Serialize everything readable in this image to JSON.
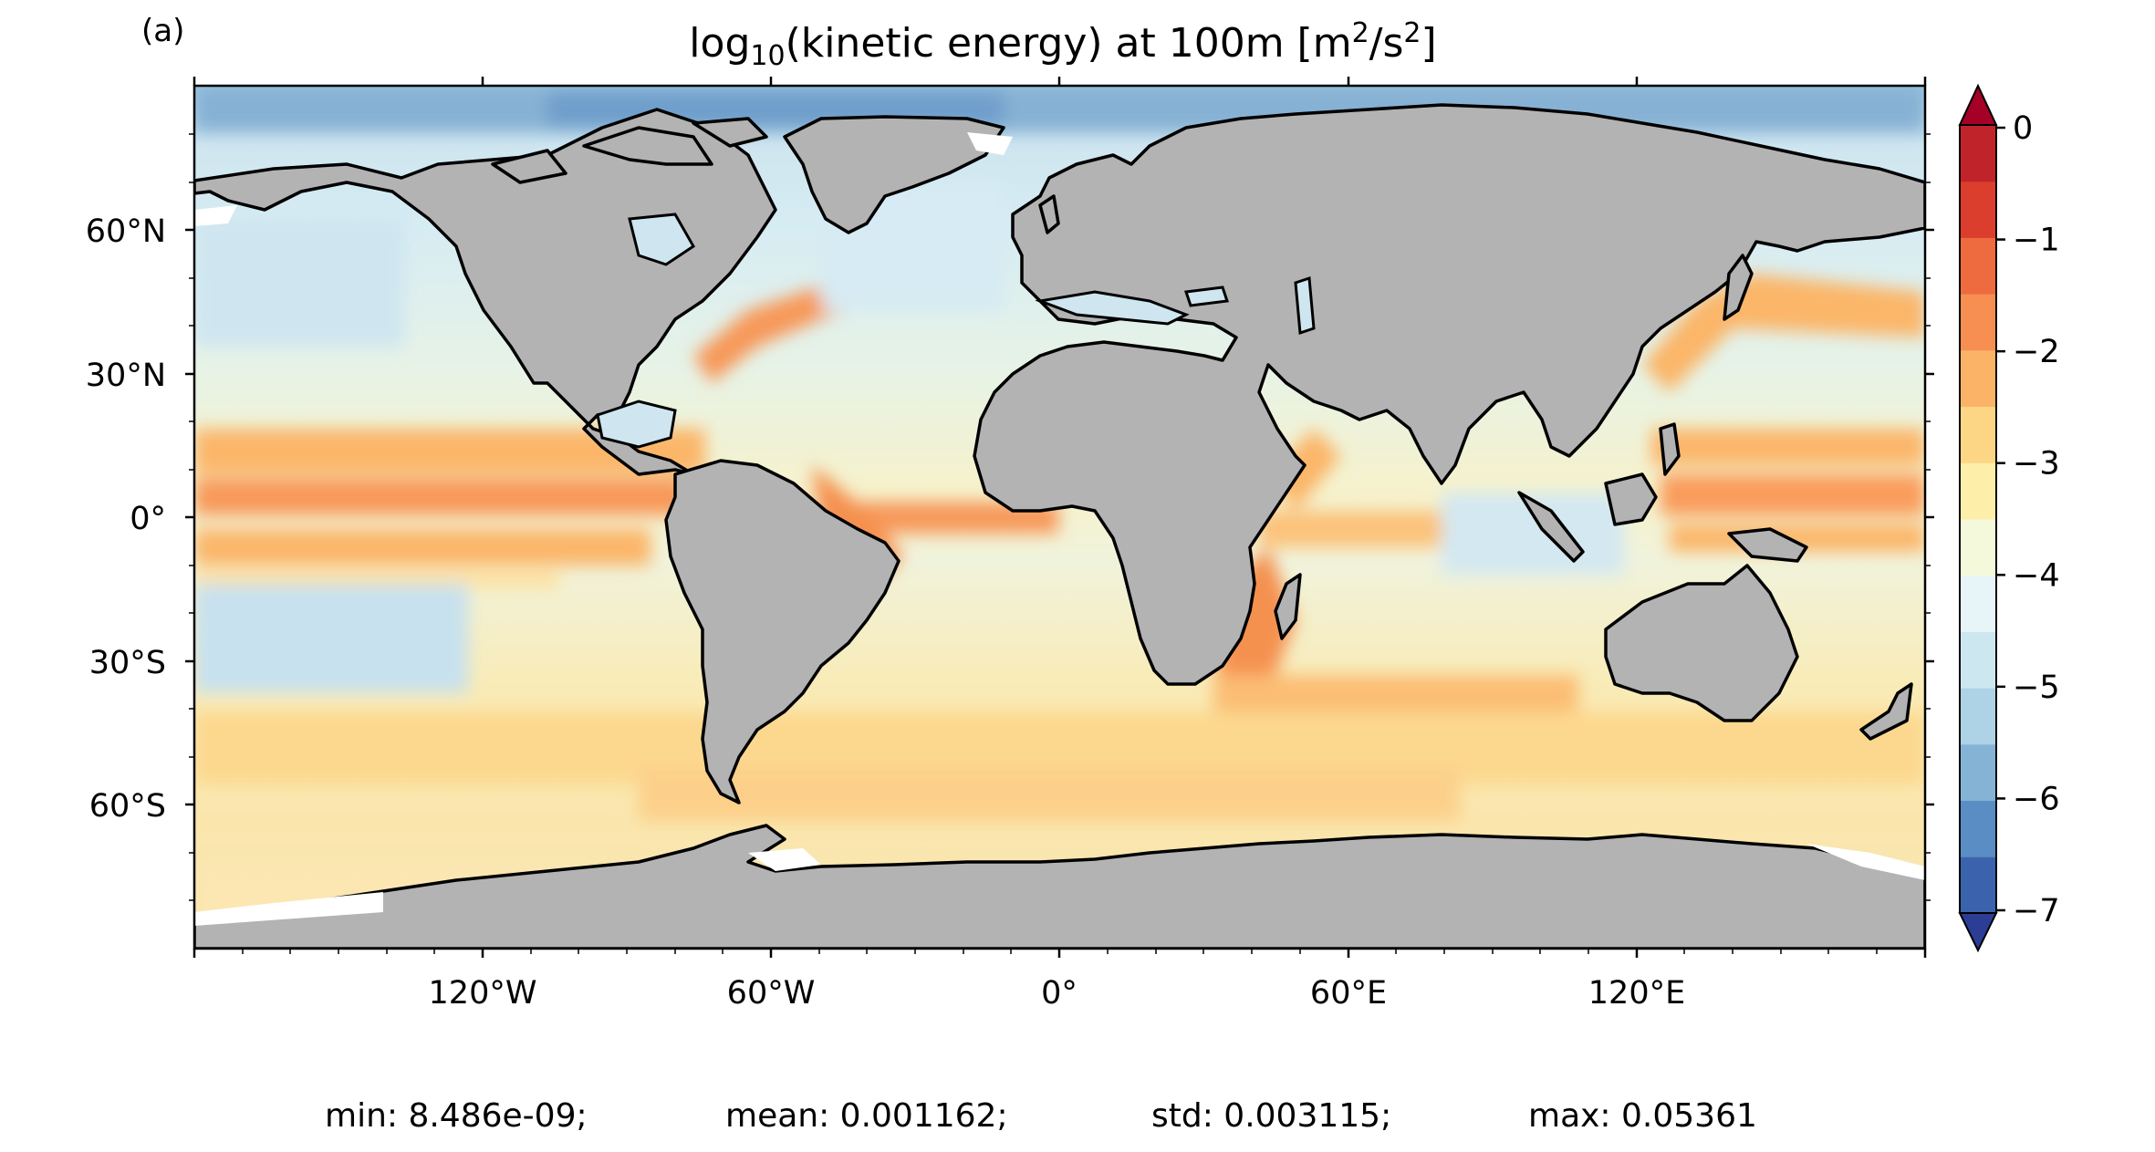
{
  "panel_label": "(a)",
  "title": {
    "prefix": "log",
    "subscript": "10",
    "middle": "(kinetic energy) at 100m [m",
    "sup1": "2",
    "slash": "/s",
    "sup2": "2",
    "suffix": "]"
  },
  "axes": {
    "lat_ticks": [
      "60°N",
      "30°N",
      "0°",
      "30°S",
      "60°S"
    ],
    "lon_ticks": [
      "120°W",
      "60°W",
      "0°",
      "60°E",
      "120°E"
    ]
  },
  "colorbar": {
    "tick_labels": [
      "0",
      "−1",
      "−2",
      "−3",
      "−4",
      "−5",
      "−6",
      "−7"
    ],
    "levels": [
      "#2c3d95",
      "#3b63ad",
      "#5a8dc3",
      "#84b3d6",
      "#aed2e6",
      "#cde7f0",
      "#e8f5f8",
      "#f5f9dc",
      "#fdeeaa",
      "#fdd685",
      "#fbb467",
      "#f78f52",
      "#ee6b3f",
      "#db3e2d",
      "#c0242a",
      "#a50026"
    ],
    "extend": "both"
  },
  "map": {
    "projection": "plate carree",
    "land_color": "#b3b3b3",
    "coastline_color": "#000000"
  },
  "stats": {
    "min": "min: 8.486e-09;",
    "mean": "mean: 0.001162;",
    "std": "std: 0.003115;",
    "max": "max: 0.05361"
  }
}
